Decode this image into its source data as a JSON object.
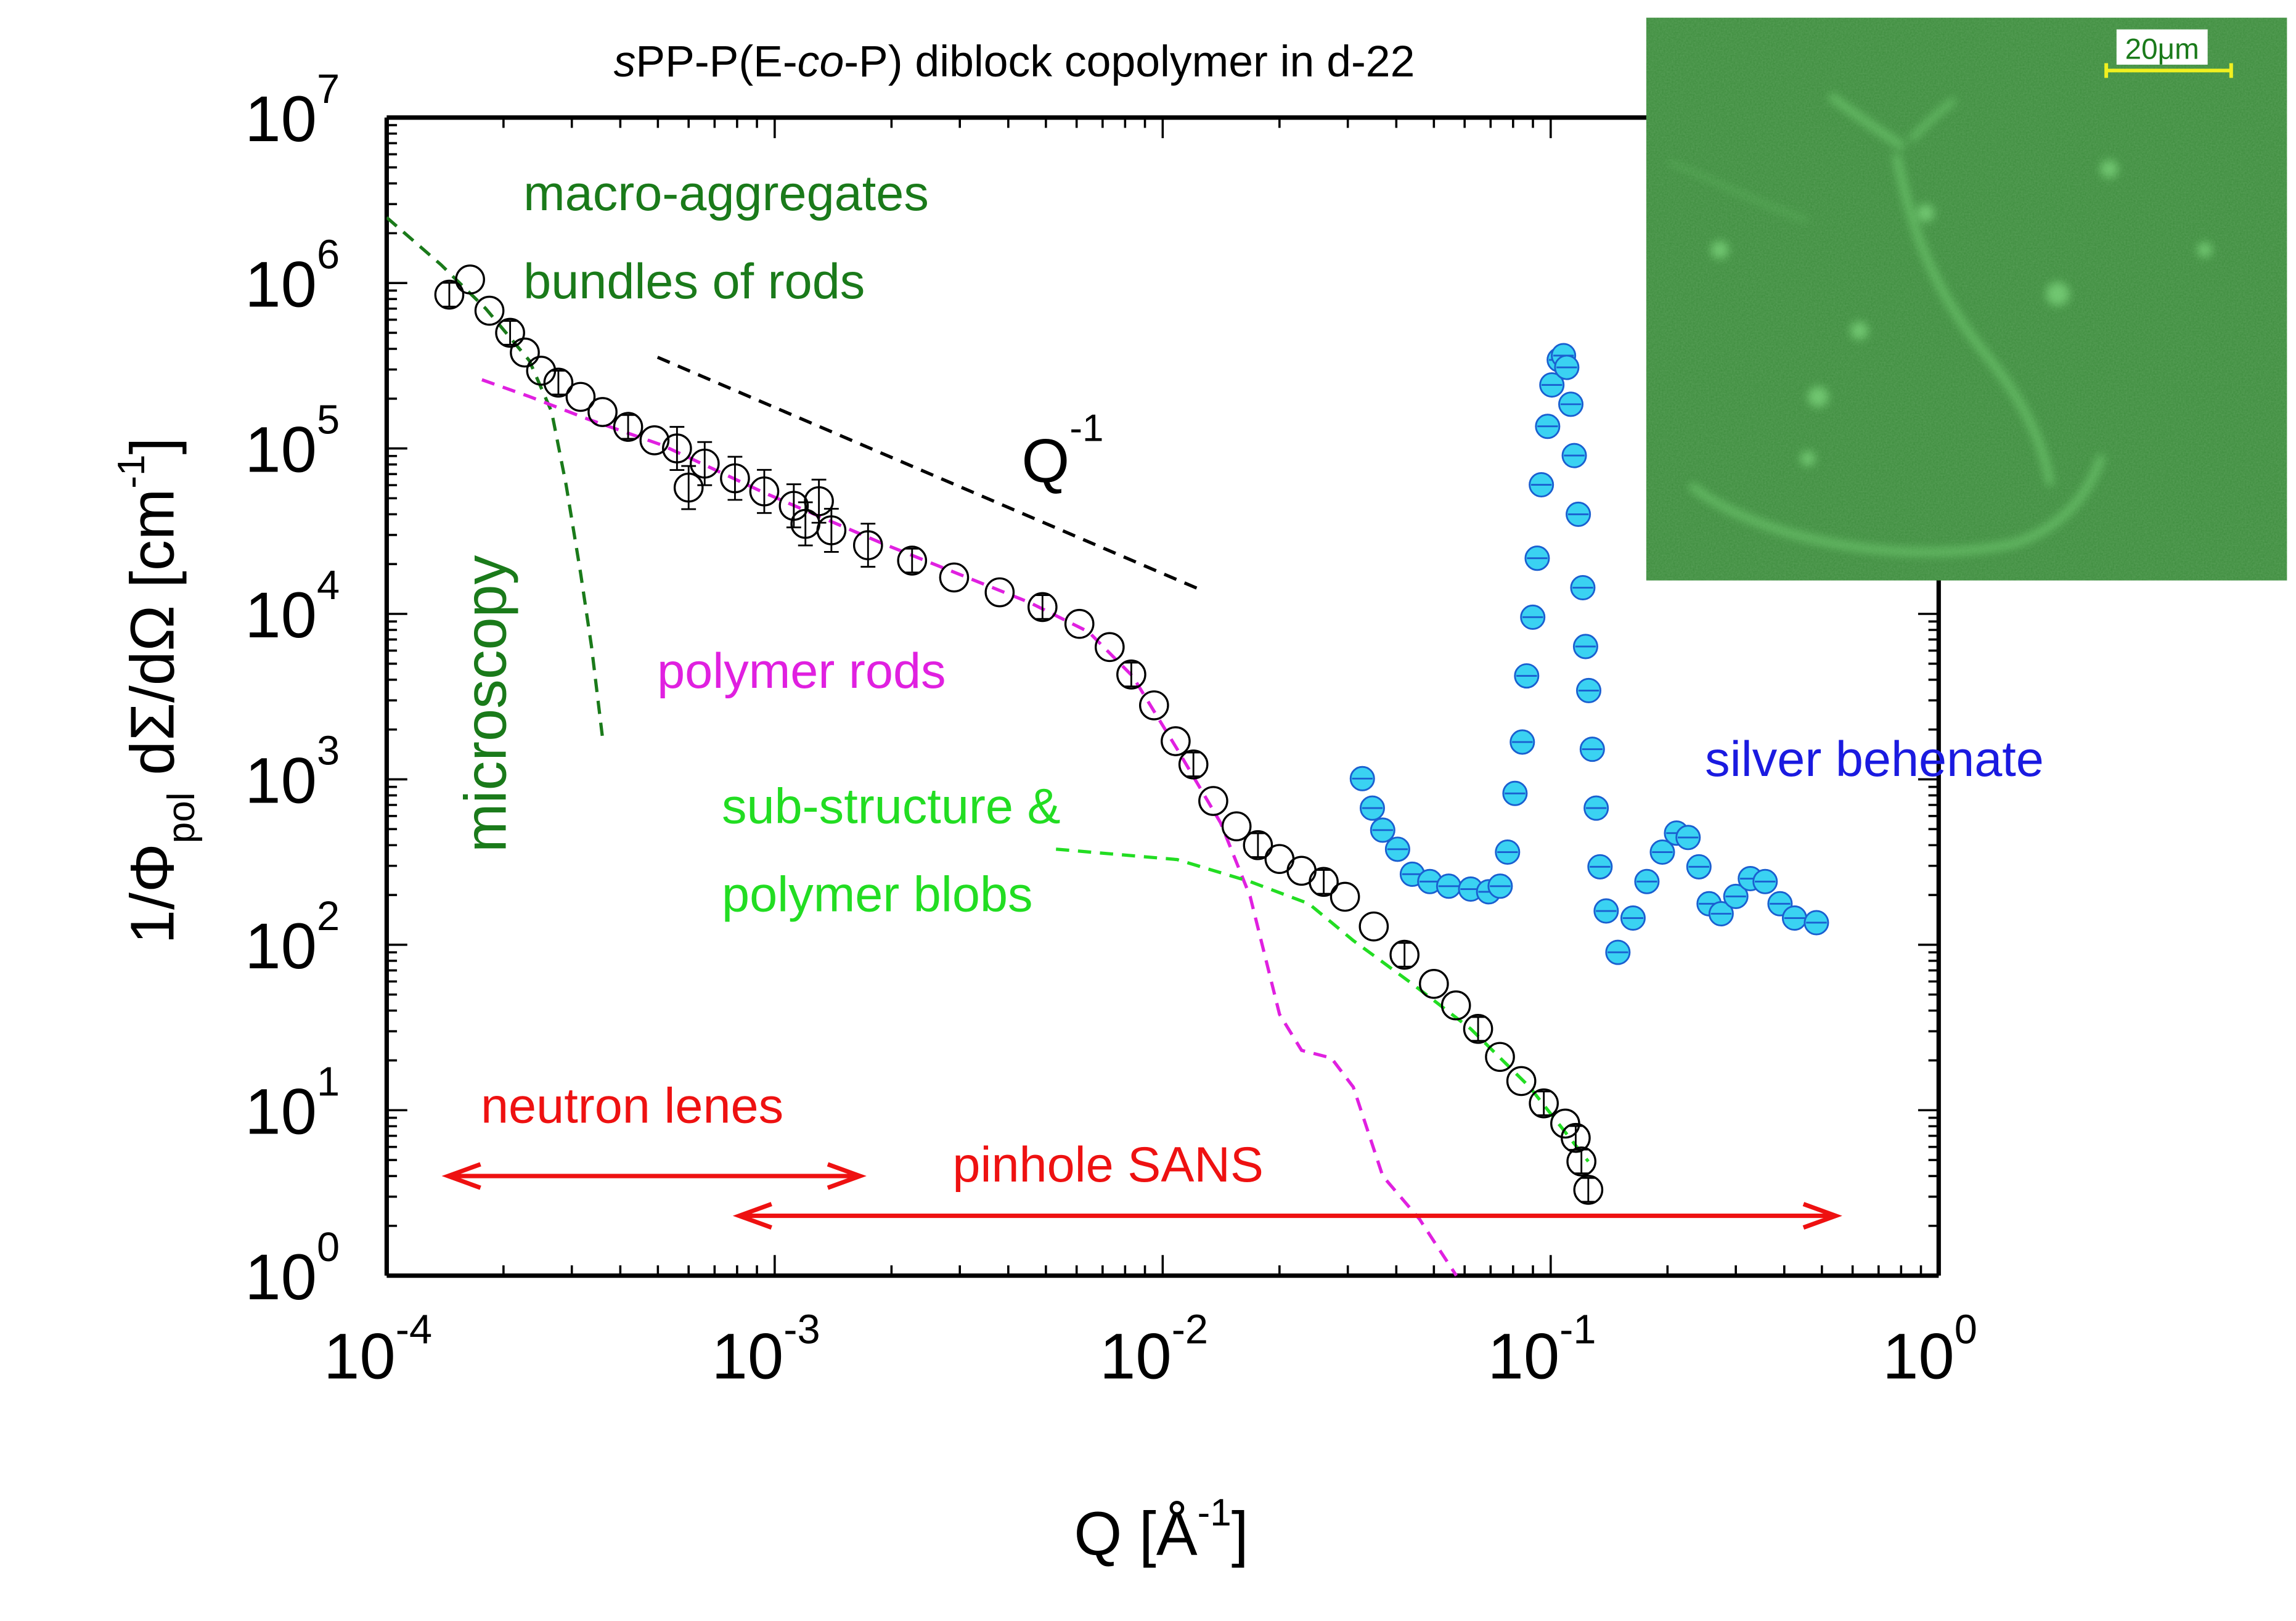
{
  "chart_data": {
    "type": "scatter",
    "title_parts": [
      "s",
      "PP-P(E-",
      "co",
      "-P) diblock copolymer in d-22"
    ],
    "xlabel": {
      "main": "Q [Å",
      "sup": "-1",
      "end": "]"
    },
    "ylabel": {
      "pre": "1/Φ",
      "sub": "pol",
      "mid": " dΣ/dΩ [cm",
      "sup": "-1",
      "end": "]"
    },
    "x_scale": "log",
    "y_scale": "log",
    "xlim": [
      0.0001,
      1
    ],
    "ylim": [
      1,
      10000000
    ],
    "x_ticks": [
      {
        "base": "10",
        "exp": "-4"
      },
      {
        "base": "10",
        "exp": "-3"
      },
      {
        "base": "10",
        "exp": "-2"
      },
      {
        "base": "10",
        "exp": "-1"
      },
      {
        "base": "10",
        "exp": "0"
      }
    ],
    "y_ticks": [
      {
        "base": "10",
        "exp": "0"
      },
      {
        "base": "10",
        "exp": "1"
      },
      {
        "base": "10",
        "exp": "2"
      },
      {
        "base": "10",
        "exp": "3"
      },
      {
        "base": "10",
        "exp": "4"
      },
      {
        "base": "10",
        "exp": "5"
      },
      {
        "base": "10",
        "exp": "6"
      },
      {
        "base": "10",
        "exp": "7"
      }
    ],
    "grid": false,
    "series": [
      {
        "kind": "open-circles",
        "color": "#000000",
        "points": [
          [
            0.000145,
            850000
          ],
          [
            0.000164,
            1050000
          ],
          [
            0.000184,
            680000
          ],
          [
            0.000208,
            500000
          ],
          [
            0.000227,
            380000
          ],
          [
            0.00025,
            295000
          ],
          [
            0.000277,
            250000
          ],
          [
            0.000316,
            205000
          ],
          [
            0.00036,
            166000
          ],
          [
            0.000419,
            135000
          ],
          [
            0.00049,
            112000
          ],
          [
            0.00056,
            100000
          ],
          [
            0.0006,
            58000
          ],
          [
            0.00066,
            81000
          ],
          [
            0.00079,
            66000
          ],
          [
            0.00094,
            55000
          ],
          [
            0.00112,
            45000
          ],
          [
            0.0012,
            35000
          ],
          [
            0.0013,
            48000
          ],
          [
            0.0014,
            32000
          ],
          [
            0.00174,
            26000
          ],
          [
            0.00226,
            21000
          ],
          [
            0.0029,
            16600
          ],
          [
            0.0038,
            13500
          ],
          [
            0.0049,
            11000
          ],
          [
            0.0061,
            8700
          ],
          [
            0.0073,
            6300
          ],
          [
            0.0083,
            4300
          ],
          [
            0.0095,
            2800
          ],
          [
            0.0108,
            1700
          ],
          [
            0.012,
            1230
          ],
          [
            0.0135,
            740
          ],
          [
            0.0155,
            520
          ],
          [
            0.0176,
            400
          ],
          [
            0.02,
            330
          ],
          [
            0.0228,
            280
          ],
          [
            0.026,
            240
          ],
          [
            0.0295,
            195
          ],
          [
            0.035,
            129
          ],
          [
            0.042,
            87
          ],
          [
            0.05,
            58
          ],
          [
            0.057,
            43
          ],
          [
            0.065,
            31
          ],
          [
            0.074,
            21
          ],
          [
            0.084,
            15
          ],
          [
            0.096,
            11
          ],
          [
            0.109,
            8.3
          ],
          [
            0.116,
            6.8
          ],
          [
            0.12,
            4.9
          ],
          [
            0.125,
            3.3
          ]
        ]
      },
      {
        "kind": "filled-circles",
        "name": "silver behenate",
        "color": "#3ad2f2",
        "edge_color": "#1a5fd0",
        "points": [
          [
            0.0327,
            1010
          ],
          [
            0.0347,
            670
          ],
          [
            0.0369,
            493
          ],
          [
            0.0403,
            378
          ],
          [
            0.044,
            267
          ],
          [
            0.0488,
            241
          ],
          [
            0.0546,
            226
          ],
          [
            0.0622,
            217
          ],
          [
            0.0692,
            209
          ],
          [
            0.0741,
            226
          ],
          [
            0.0774,
            363
          ],
          [
            0.0809,
            822
          ],
          [
            0.0845,
            1680
          ],
          [
            0.0867,
            4220
          ],
          [
            0.0899,
            9550
          ],
          [
            0.0923,
            21700
          ],
          [
            0.0946,
            60300
          ],
          [
            0.0982,
            136000
          ],
          [
            0.1007,
            242000
          ],
          [
            0.1052,
            343000
          ],
          [
            0.1079,
            364000
          ],
          [
            0.11,
            309000
          ],
          [
            0.1127,
            185000
          ],
          [
            0.115,
            90600
          ],
          [
            0.1178,
            40000
          ],
          [
            0.121,
            14400
          ],
          [
            0.123,
            6350
          ],
          [
            0.1253,
            3440
          ],
          [
            0.128,
            1520
          ],
          [
            0.131,
            670
          ],
          [
            0.134,
            296
          ],
          [
            0.139,
            160
          ],
          [
            0.149,
            90
          ],
          [
            0.163,
            145
          ],
          [
            0.177,
            241
          ],
          [
            0.194,
            363
          ],
          [
            0.211,
            473
          ],
          [
            0.226,
            445
          ],
          [
            0.241,
            296
          ],
          [
            0.256,
            177
          ],
          [
            0.275,
            154
          ],
          [
            0.3,
            196
          ],
          [
            0.327,
            251
          ],
          [
            0.357,
            241
          ],
          [
            0.39,
            177
          ],
          [
            0.425,
            145
          ],
          [
            0.484,
            136
          ]
        ]
      }
    ],
    "fit_curves": [
      {
        "label": "macro-aggregates",
        "label2": "bundles of rods",
        "color": "#1a7a1a",
        "style": "dashed",
        "points": [
          [
            0.0001,
            2490000
          ],
          [
            0.000138,
            1290000
          ],
          [
            0.00018,
            700000
          ],
          [
            0.000233,
            340000
          ],
          [
            0.000266,
            167000
          ],
          [
            0.00029,
            60000
          ],
          [
            0.000316,
            17700
          ],
          [
            0.000337,
            6400
          ],
          [
            0.000361,
            1680
          ]
        ]
      },
      {
        "label": "polymer rods",
        "color": "#e020e0",
        "style": "dashed",
        "points": [
          [
            0.000176,
            260000
          ],
          [
            0.000233,
            206000
          ],
          [
            0.000331,
            150000
          ],
          [
            0.000512,
            105000
          ],
          [
            0.00094,
            54000
          ],
          [
            0.0019,
            26600
          ],
          [
            0.00454,
            11700
          ],
          [
            0.00644,
            7800
          ],
          [
            0.00836,
            4200
          ],
          [
            0.0109,
            1520
          ],
          [
            0.0141,
            546
          ],
          [
            0.0168,
            196
          ],
          [
            0.02,
            38
          ],
          [
            0.0228,
            23
          ],
          [
            0.0272,
            20.7
          ],
          [
            0.031,
            13.8
          ],
          [
            0.0369,
            4.0
          ],
          [
            0.0459,
            2.2
          ],
          [
            0.0571,
            1.0
          ]
        ]
      },
      {
        "label": "sub-structure &",
        "label2": "polymer blobs",
        "color": "#22dd22",
        "style": "dashed",
        "points": [
          [
            0.00531,
            378
          ],
          [
            0.0109,
            327
          ],
          [
            0.0168,
            241
          ],
          [
            0.0238,
            177
          ],
          [
            0.031,
            106
          ],
          [
            0.044,
            58
          ],
          [
            0.0622,
            31
          ],
          [
            0.0883,
            13.8
          ],
          [
            0.125,
            4.9
          ]
        ]
      },
      {
        "label": "Q",
        "label_sup": "-1",
        "color": "#000000",
        "style": "dashed",
        "points": [
          [
            0.000499,
            356000
          ],
          [
            0.0127,
            13800
          ]
        ]
      }
    ],
    "annotations": {
      "microscopy": {
        "text": "microscopy",
        "color": "#1a7a1a"
      },
      "silver_behenate": {
        "text": "silver behenate",
        "color": "#1a1ae0"
      }
    },
    "ranges": [
      {
        "label": "neutron lenes",
        "color": "#ee1111",
        "q_range": [
          0.000144,
          0.00166
        ],
        "level": 4.0
      },
      {
        "label": "pinhole SANS",
        "color": "#ee1111",
        "q_range": [
          0.00081,
          0.543
        ],
        "level": 2.3
      }
    ],
    "inset": {
      "type": "fluorescence micrograph",
      "scale_bar": "20μm",
      "color": "#3d8c3d",
      "scale_bar_color": "#f0f020"
    }
  }
}
